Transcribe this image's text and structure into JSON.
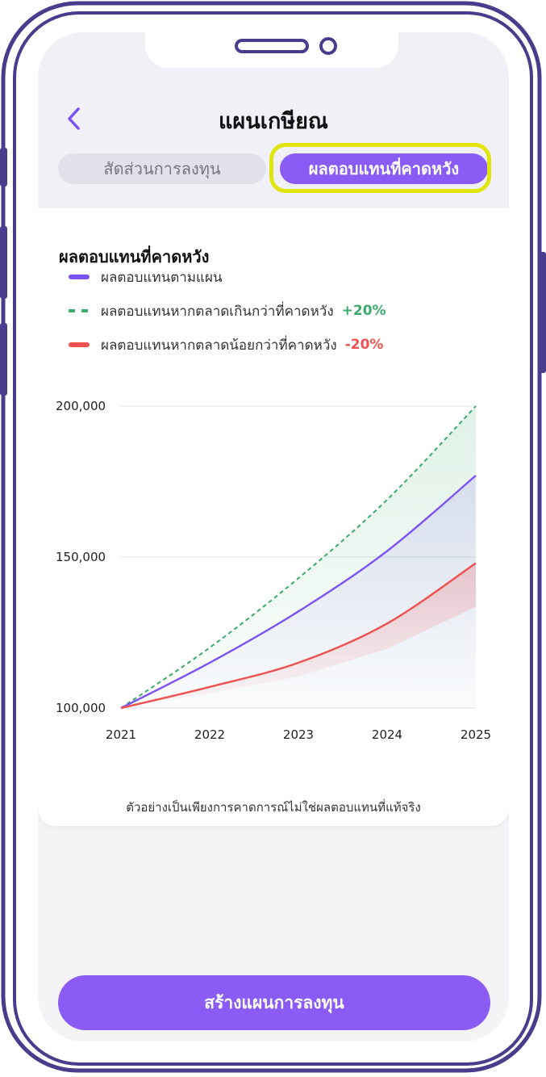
{
  "header": {
    "title": "แผนเกษียณ",
    "back_icon": "chevron-left-icon",
    "tabs": [
      {
        "label": "สัดส่วนการลงทุน",
        "active": false
      },
      {
        "label": "ผลตอบแทนที่คาดหวัง",
        "active": true
      }
    ]
  },
  "card": {
    "title": "ผลตอบแทนที่คาดหวัง",
    "legend": [
      {
        "label": "ผลตอบแทนตามแผน",
        "pct": "",
        "color": "#7b52f3",
        "style": "solid"
      },
      {
        "label": "ผลตอบแทนหากตลาดเกินกว่าที่คาดหวัง",
        "pct": "+20%",
        "color": "#3bab6b",
        "style": "dashed"
      },
      {
        "label": "ผลตอบแทนหากตลาดน้อยกว่าที่คาดหวัง",
        "pct": "-20%",
        "color": "#ef5050",
        "style": "solid"
      }
    ],
    "disclaimer": "ตัวอย่างเป็นเพียงการคาดการณ์ไม่ใช่ผลตอบแทนที่แท้จริง"
  },
  "chart_data": {
    "type": "line",
    "title": "",
    "x": [
      "2021",
      "2022",
      "2023",
      "2024",
      "2025"
    ],
    "ytick_labels": [
      "200,000",
      "150,000",
      "100,000"
    ],
    "ylim": [
      100000,
      200000
    ],
    "grid": true,
    "series": [
      {
        "name": "ผลตอบแทนตามแผน",
        "color": "#7b52f3",
        "style": "solid",
        "values": [
          100000,
          115000,
          132000,
          152000,
          177000
        ]
      },
      {
        "name": "ผลตอบแทนหากตลาดเกินกว่าที่คาดหวัง",
        "color": "#3bab6b",
        "style": "dashed",
        "values": [
          100000,
          120000,
          143000,
          169000,
          200000
        ]
      },
      {
        "name": "ผลตอบแทนหากตลาดน้อยกว่าที่คาดหวัง",
        "color": "#ef5050",
        "style": "solid",
        "values": [
          100000,
          107000,
          115000,
          128000,
          148000
        ]
      }
    ]
  },
  "cta": {
    "label": "สร้างแผนการลงทุน"
  }
}
